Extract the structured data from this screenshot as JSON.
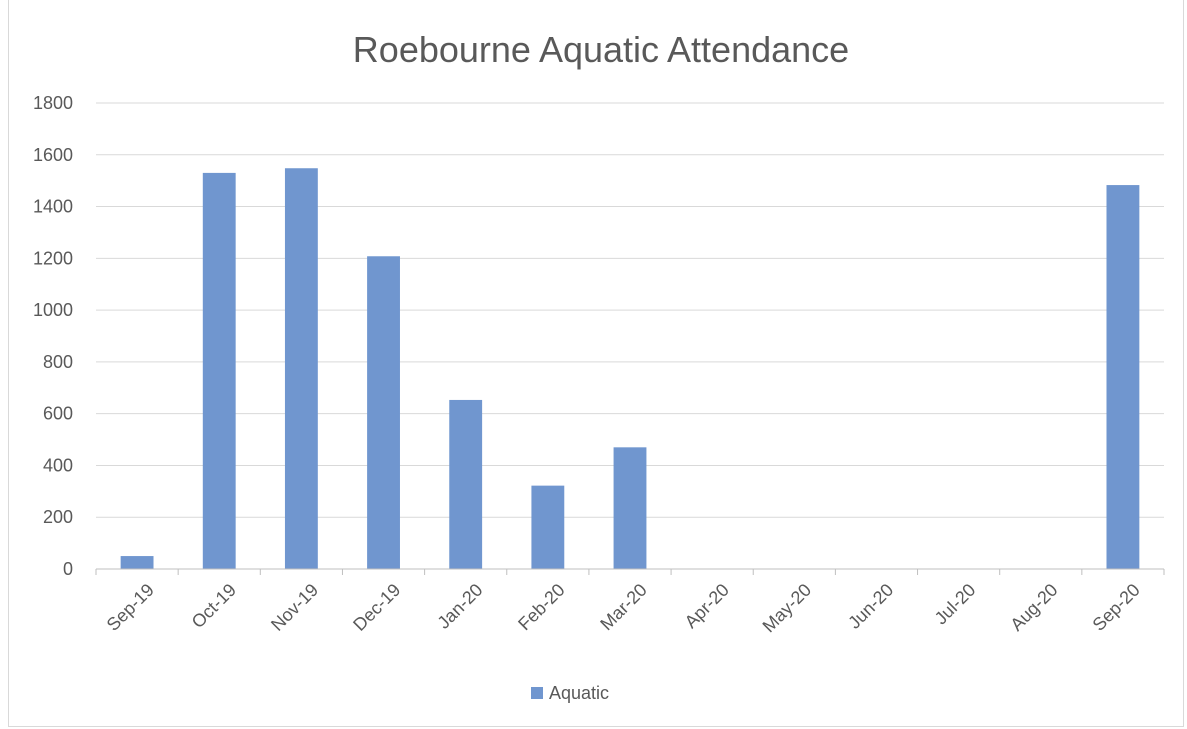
{
  "chart_data": {
    "type": "bar",
    "title": "Roebourne Aquatic Attendance",
    "categories": [
      "Sep-19",
      "Oct-19",
      "Nov-19",
      "Dec-19",
      "Jan-20",
      "Feb-20",
      "Mar-20",
      "Apr-20",
      "May-20",
      "Jun-20",
      "Jul-20",
      "Aug-20",
      "Sep-20"
    ],
    "series": [
      {
        "name": "Aquatic",
        "color": "#7096cf",
        "values": [
          50,
          1530,
          1548,
          1208,
          653,
          322,
          470,
          0,
          0,
          0,
          0,
          0,
          1483
        ]
      }
    ],
    "ylim": [
      0,
      1800
    ],
    "yticks": [
      0,
      200,
      400,
      600,
      800,
      1000,
      1200,
      1400,
      1600,
      1800
    ],
    "grid": true,
    "legend_position": "bottom"
  }
}
